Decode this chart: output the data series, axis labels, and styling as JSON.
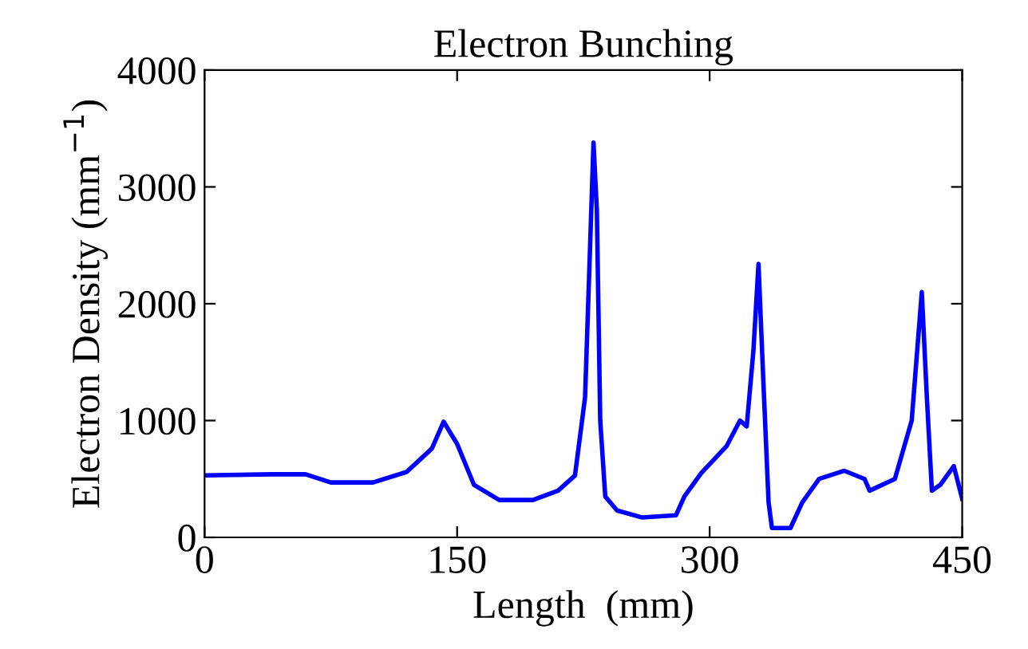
{
  "chart_data": {
    "type": "line",
    "title": "Electron Bunching",
    "xlabel": "Length  (mm)",
    "ylabel": "Electron Density (mm$^{−1}$)",
    "x": [
      0,
      40,
      60,
      75,
      100,
      120,
      135,
      142,
      150,
      160,
      175,
      195,
      210,
      220,
      226,
      229,
      231,
      233,
      235,
      238,
      245,
      260,
      280,
      285,
      295,
      310,
      318,
      322,
      326,
      329,
      332,
      335,
      337,
      348,
      355,
      365,
      380,
      392,
      395,
      410,
      420,
      426,
      429,
      432,
      437,
      445,
      450
    ],
    "series": [
      {
        "color": "#0000ff",
        "values": [
          530,
          540,
          540,
          470,
          470,
          560,
          760,
          990,
          800,
          450,
          320,
          320,
          400,
          530,
          1200,
          2500,
          3380,
          2800,
          1000,
          350,
          230,
          170,
          190,
          350,
          550,
          780,
          1000,
          950,
          1600,
          2340,
          1300,
          300,
          80,
          80,
          300,
          500,
          570,
          500,
          400,
          500,
          1000,
          2100,
          1200,
          400,
          450,
          610,
          330
        ]
      }
    ],
    "xlim": [
      0,
      450
    ],
    "xticks": [
      0,
      150,
      300,
      450
    ],
    "ylim": [
      0,
      4000
    ],
    "yticks": [
      0,
      1000,
      2000,
      3000,
      4000
    ],
    "grid": false,
    "legend": false,
    "marker": "none",
    "line_style": "solid"
  }
}
